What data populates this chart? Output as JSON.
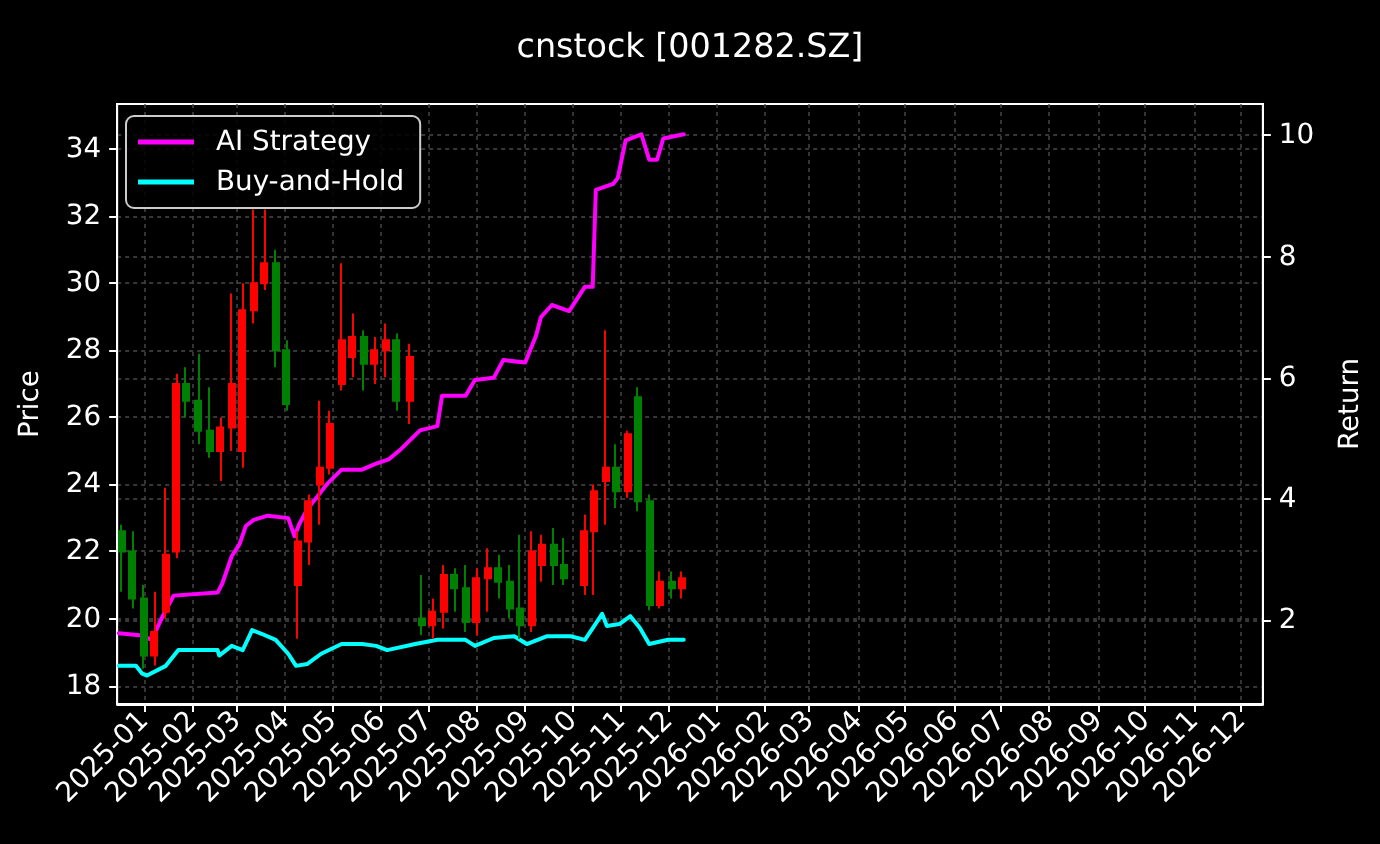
{
  "chart_data": {
    "type": "candlestick",
    "title": "cnstock [001282.SZ]",
    "ylabel": "Price",
    "y2label": "Return",
    "x": [
      "2024-12-18",
      "2024-12-25",
      "2025-01-01",
      "2025-01-08",
      "2025-01-15",
      "2025-01-22",
      "2025-01-28",
      "2025-02-05",
      "2025-02-12",
      "2025-02-19",
      "2025-02-26",
      "2025-03-05",
      "2025-03-12",
      "2025-03-19",
      "2025-03-26",
      "2025-04-02",
      "2025-04-09",
      "2025-04-16",
      "2025-04-23",
      "2025-04-29",
      "2025-05-07",
      "2025-05-14",
      "2025-05-21",
      "2025-05-28",
      "2025-06-04",
      "2025-06-11",
      "2025-06-19",
      "2025-06-27",
      "2025-07-04",
      "2025-07-11",
      "2025-07-18",
      "2025-07-25",
      "2025-08-01",
      "2025-08-08",
      "2025-08-15",
      "2025-08-22",
      "2025-08-29",
      "2025-09-05",
      "2025-09-12",
      "2025-09-19",
      "2025-09-26",
      "2025-10-09",
      "2025-10-15",
      "2025-10-22",
      "2025-10-29",
      "2025-11-05",
      "2025-11-12",
      "2025-11-19",
      "2025-11-26",
      "2025-12-03",
      "2025-12-10"
    ],
    "ohlc": [
      [
        22.6,
        22.8,
        20.8,
        22.0
      ],
      [
        22.0,
        22.6,
        20.3,
        20.6
      ],
      [
        20.6,
        21.0,
        18.5,
        18.9
      ],
      [
        18.9,
        20.8,
        18.6,
        19.6
      ],
      [
        20.2,
        23.9,
        20.0,
        21.9
      ],
      [
        22.0,
        27.3,
        21.8,
        27.0
      ],
      [
        27.0,
        27.5,
        26.0,
        26.5
      ],
      [
        26.5,
        27.9,
        25.2,
        25.6
      ],
      [
        25.6,
        26.9,
        24.8,
        25.0
      ],
      [
        25.0,
        26.0,
        24.1,
        25.7
      ],
      [
        25.7,
        29.7,
        25.0,
        27.0
      ],
      [
        25.0,
        30.0,
        24.5,
        29.2
      ],
      [
        29.2,
        32.2,
        28.8,
        30.0
      ],
      [
        30.0,
        32.2,
        29.8,
        30.6
      ],
      [
        30.6,
        31.0,
        27.5,
        28.0
      ],
      [
        28.0,
        28.3,
        26.2,
        26.4
      ],
      [
        21.0,
        22.6,
        19.4,
        22.3
      ],
      [
        22.3,
        23.7,
        21.6,
        23.5
      ],
      [
        24.0,
        26.5,
        22.8,
        24.5
      ],
      [
        24.5,
        26.2,
        24.3,
        25.8
      ],
      [
        27.0,
        30.6,
        26.8,
        28.3
      ],
      [
        27.8,
        29.1,
        27.2,
        28.4
      ],
      [
        28.4,
        28.6,
        26.8,
        27.6
      ],
      [
        27.6,
        28.4,
        27.0,
        28.0
      ],
      [
        28.0,
        28.8,
        27.2,
        28.3
      ],
      [
        28.3,
        28.5,
        26.2,
        26.5
      ],
      [
        26.5,
        28.2,
        25.8,
        27.8
      ],
      [
        20.0,
        21.3,
        19.5,
        19.8
      ],
      [
        19.8,
        20.6,
        19.4,
        20.2
      ],
      [
        20.2,
        21.6,
        19.7,
        21.3
      ],
      [
        21.3,
        21.5,
        20.2,
        20.9
      ],
      [
        20.9,
        21.6,
        19.6,
        19.9
      ],
      [
        19.9,
        21.5,
        19.5,
        21.2
      ],
      [
        21.2,
        22.1,
        20.2,
        21.5
      ],
      [
        21.5,
        21.9,
        20.6,
        21.1
      ],
      [
        21.1,
        21.6,
        20.0,
        20.3
      ],
      [
        20.3,
        22.5,
        19.4,
        19.8
      ],
      [
        19.8,
        22.6,
        19.6,
        22.0
      ],
      [
        21.6,
        22.5,
        21.1,
        22.2
      ],
      [
        22.2,
        22.7,
        21.0,
        21.6
      ],
      [
        21.6,
        22.4,
        21.0,
        21.2
      ],
      [
        21.0,
        23.1,
        20.7,
        22.6
      ],
      [
        22.6,
        24.0,
        20.7,
        23.8
      ],
      [
        24.1,
        28.6,
        22.8,
        24.5
      ],
      [
        24.5,
        25.2,
        23.3,
        23.8
      ],
      [
        23.8,
        25.6,
        23.6,
        25.5
      ],
      [
        26.6,
        26.9,
        23.2,
        23.5
      ],
      [
        23.5,
        23.7,
        20.25,
        20.4
      ],
      [
        20.4,
        21.4,
        20.3,
        21.1
      ],
      [
        21.1,
        21.4,
        20.6,
        20.9
      ],
      [
        20.9,
        21.4,
        20.6,
        21.2
      ]
    ],
    "colors": [
      "#008000",
      "#008000",
      "#008000",
      "#ff0000",
      "#ff0000",
      "#ff0000",
      "#008000",
      "#008000",
      "#008000",
      "#ff0000",
      "#ff0000",
      "#ff0000",
      "#ff0000",
      "#ff0000",
      "#008000",
      "#008000",
      "#ff0000",
      "#ff0000",
      "#ff0000",
      "#ff0000",
      "#ff0000",
      "#ff0000",
      "#008000",
      "#ff0000",
      "#ff0000",
      "#008000",
      "#ff0000",
      "#008000",
      "#ff0000",
      "#ff0000",
      "#008000",
      "#008000",
      "#ff0000",
      "#ff0000",
      "#008000",
      "#008000",
      "#008000",
      "#ff0000",
      "#ff0000",
      "#008000",
      "#008000",
      "#ff0000",
      "#ff0000",
      "#ff0000",
      "#008000",
      "#ff0000",
      "#008000",
      "#008000",
      "#ff0000",
      "#008000",
      "#ff0000"
    ],
    "series": [
      {
        "type": "line",
        "name": "AI Strategy",
        "color": "#ff00ff",
        "axis": "y2",
        "x": [
          "2024-12-16",
          "2024-12-31",
          "2025-01-06",
          "2025-01-13",
          "2025-01-20",
          "2025-02-17",
          "2025-02-20",
          "2025-02-26",
          "2025-03-03",
          "2025-03-07",
          "2025-03-12",
          "2025-03-21",
          "2025-04-03",
          "2025-04-07",
          "2025-04-10",
          "2025-04-15",
          "2025-04-28",
          "2025-05-07",
          "2025-05-20",
          "2025-05-29",
          "2025-06-06",
          "2025-06-13",
          "2025-06-26",
          "2025-07-07",
          "2025-07-10",
          "2025-07-25",
          "2025-07-31",
          "2025-08-12",
          "2025-08-18",
          "2025-09-01",
          "2025-09-08",
          "2025-09-11",
          "2025-09-18",
          "2025-09-29",
          "2025-10-09",
          "2025-10-14",
          "2025-10-16",
          "2025-10-27",
          "2025-10-30",
          "2025-11-04",
          "2025-11-14",
          "2025-11-19",
          "2025-11-24",
          "2025-11-28",
          "2025-12-11"
        ],
        "values": [
          1.78,
          1.74,
          1.67,
          2.06,
          2.4,
          2.45,
          2.6,
          3.05,
          3.25,
          3.55,
          3.65,
          3.72,
          3.68,
          3.38,
          3.58,
          3.82,
          4.25,
          4.48,
          4.48,
          4.58,
          4.65,
          4.8,
          5.13,
          5.2,
          5.7,
          5.7,
          5.96,
          6.0,
          6.29,
          6.25,
          6.7,
          7.0,
          7.2,
          7.1,
          7.5,
          7.5,
          9.1,
          9.2,
          9.3,
          9.92,
          10.02,
          9.6,
          9.6,
          9.95,
          10.02
        ]
      },
      {
        "type": "line",
        "name": "Buy-and-Hold",
        "color": "#00ffff",
        "axis": "y2",
        "x": [
          "2024-12-16",
          "2024-12-27",
          "2024-12-31",
          "2025-01-03",
          "2025-01-15",
          "2025-01-23",
          "2025-02-17",
          "2025-02-18",
          "2025-02-26",
          "2025-03-05",
          "2025-03-11",
          "2025-03-17",
          "2025-03-26",
          "2025-04-03",
          "2025-04-08",
          "2025-04-15",
          "2025-04-24",
          "2025-05-07",
          "2025-05-20",
          "2025-05-29",
          "2025-06-05",
          "2025-06-23",
          "2025-07-07",
          "2025-07-25",
          "2025-07-31",
          "2025-08-12",
          "2025-08-25",
          "2025-09-02",
          "2025-09-15",
          "2025-09-30",
          "2025-10-09",
          "2025-10-15",
          "2025-10-20",
          "2025-10-23",
          "2025-10-31",
          "2025-11-07",
          "2025-11-13",
          "2025-11-19",
          "2025-12-01",
          "2025-12-11"
        ],
        "values": [
          1.24,
          1.24,
          1.11,
          1.08,
          1.24,
          1.5,
          1.5,
          1.41,
          1.57,
          1.5,
          1.83,
          1.77,
          1.67,
          1.44,
          1.24,
          1.27,
          1.44,
          1.6,
          1.6,
          1.57,
          1.5,
          1.6,
          1.67,
          1.67,
          1.57,
          1.7,
          1.73,
          1.6,
          1.73,
          1.73,
          1.67,
          1.9,
          2.1,
          1.9,
          1.93,
          2.06,
          1.87,
          1.6,
          1.67,
          1.67
        ]
      }
    ],
    "xlim": [
      "2024-12-15",
      "2026-12-15"
    ],
    "xticks": [
      "2025-01",
      "2025-02",
      "2025-03",
      "2025-04",
      "2025-05",
      "2025-06",
      "2025-07",
      "2025-08",
      "2025-09",
      "2025-10",
      "2025-11",
      "2025-12",
      "2026-01",
      "2026-02",
      "2026-03",
      "2026-04",
      "2026-05",
      "2026-06",
      "2026-07",
      "2026-08",
      "2026-09",
      "2026-10",
      "2026-11",
      "2026-12"
    ],
    "ylim": [
      17.45,
      35.35
    ],
    "yticks": [
      18,
      20,
      22,
      24,
      26,
      28,
      30,
      32,
      34
    ],
    "y2lim": [
      0.61,
      10.52
    ],
    "y2ticks": [
      2,
      4,
      6,
      8,
      10
    ],
    "grid": true,
    "legend": "top left"
  }
}
